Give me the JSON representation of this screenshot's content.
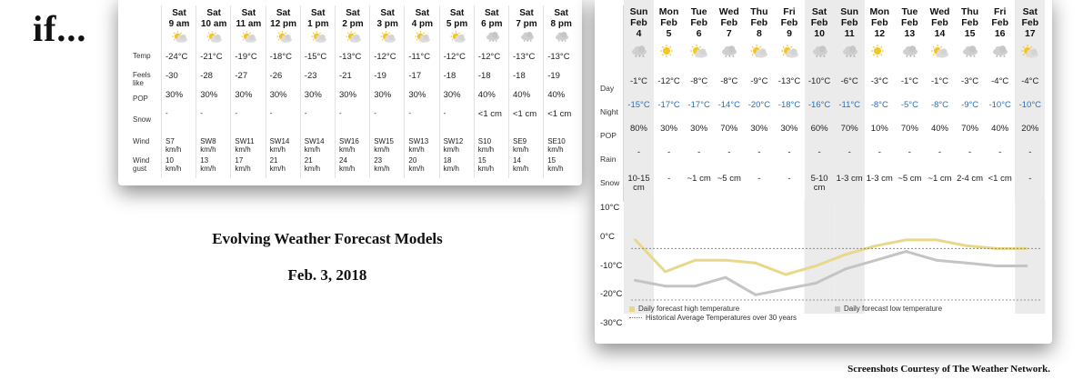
{
  "slide": {
    "if_text": "if...",
    "title": "Evolving Weather Forecast Models",
    "date": "Feb. 3, 2018",
    "credit": "Screenshots Courtesy of The Weather Network."
  },
  "hourly": {
    "row_labels": {
      "temp": "Temp",
      "feels": "Feels like",
      "pop": "POP",
      "snow": "Snow",
      "wind": "Wind",
      "gust": "Wind gust"
    },
    "columns": [
      {
        "day": "Sat",
        "time": "9 am",
        "icon": "sun-cloud-icon",
        "temp": "-24°C",
        "feels": "-30",
        "pop": "30%",
        "snow": "-",
        "wind": "S7",
        "wind_unit": "km/h",
        "gust": "10",
        "gust_unit": "km/h"
      },
      {
        "day": "Sat",
        "time": "10 am",
        "icon": "sun-cloud-icon",
        "temp": "-21°C",
        "feels": "-28",
        "pop": "30%",
        "snow": "-",
        "wind": "SW8",
        "wind_unit": "km/h",
        "gust": "13",
        "gust_unit": "km/h"
      },
      {
        "day": "Sat",
        "time": "11 am",
        "icon": "sun-cloud-icon",
        "temp": "-19°C",
        "feels": "-27",
        "pop": "30%",
        "snow": "-",
        "wind": "SW11",
        "wind_unit": "km/h",
        "gust": "17",
        "gust_unit": "km/h"
      },
      {
        "day": "Sat",
        "time": "12 pm",
        "icon": "sun-cloud-icon",
        "temp": "-18°C",
        "feels": "-26",
        "pop": "30%",
        "snow": "-",
        "wind": "SW14",
        "wind_unit": "km/h",
        "gust": "21",
        "gust_unit": "km/h"
      },
      {
        "day": "Sat",
        "time": "1 pm",
        "icon": "sun-cloud-icon",
        "temp": "-15°C",
        "feels": "-23",
        "pop": "30%",
        "snow": "-",
        "wind": "SW14",
        "wind_unit": "km/h",
        "gust": "21",
        "gust_unit": "km/h"
      },
      {
        "day": "Sat",
        "time": "2 pm",
        "icon": "sun-cloud-icon",
        "temp": "-13°C",
        "feels": "-21",
        "pop": "30%",
        "snow": "-",
        "wind": "SW16",
        "wind_unit": "km/h",
        "gust": "24",
        "gust_unit": "km/h"
      },
      {
        "day": "Sat",
        "time": "3 pm",
        "icon": "sun-cloud-icon",
        "temp": "-12°C",
        "feels": "-19",
        "pop": "30%",
        "snow": "-",
        "wind": "SW15",
        "wind_unit": "km/h",
        "gust": "23",
        "gust_unit": "km/h"
      },
      {
        "day": "Sat",
        "time": "4 pm",
        "icon": "sun-cloud-icon",
        "temp": "-11°C",
        "feels": "-17",
        "pop": "30%",
        "snow": "-",
        "wind": "SW13",
        "wind_unit": "km/h",
        "gust": "20",
        "gust_unit": "km/h"
      },
      {
        "day": "Sat",
        "time": "5 pm",
        "icon": "sun-cloud-icon",
        "temp": "-12°C",
        "feels": "-18",
        "pop": "30%",
        "snow": "-",
        "wind": "SW12",
        "wind_unit": "km/h",
        "gust": "18",
        "gust_unit": "km/h"
      },
      {
        "day": "Sat",
        "time": "6 pm",
        "icon": "snow-cloud-icon",
        "temp": "-12°C",
        "feels": "-18",
        "pop": "40%",
        "snow": "<1 cm",
        "wind": "S10",
        "wind_unit": "km/h",
        "gust": "15",
        "gust_unit": "km/h"
      },
      {
        "day": "Sat",
        "time": "7 pm",
        "icon": "snow-cloud-icon",
        "temp": "-13°C",
        "feels": "-18",
        "pop": "40%",
        "snow": "<1 cm",
        "wind": "SE9",
        "wind_unit": "km/h",
        "gust": "14",
        "gust_unit": "km/h"
      },
      {
        "day": "Sat",
        "time": "8 pm",
        "icon": "snow-cloud-icon",
        "temp": "-13°C",
        "feels": "-19",
        "pop": "40%",
        "snow": "<1 cm",
        "wind": "SE10",
        "wind_unit": "km/h",
        "gust": "15",
        "gust_unit": "km/h"
      }
    ]
  },
  "daily": {
    "row_labels": {
      "day": "Day",
      "night": "Night",
      "pop": "POP",
      "rain": "Rain",
      "snow": "Snow"
    },
    "columns": [
      {
        "dow": "Sun",
        "month": "Feb",
        "date": "4",
        "icon": "snow-cloud-icon",
        "day": "-1°C",
        "night": "-15°C",
        "pop": "80%",
        "rain": "-",
        "snow": "10-15 cm",
        "weekend": true
      },
      {
        "dow": "Mon",
        "month": "Feb",
        "date": "5",
        "icon": "sun-icon",
        "day": "-12°C",
        "night": "-17°C",
        "pop": "30%",
        "rain": "-",
        "snow": "-",
        "weekend": false
      },
      {
        "dow": "Tue",
        "month": "Feb",
        "date": "6",
        "icon": "sun-cloud-icon",
        "day": "-8°C",
        "night": "-17°C",
        "pop": "30%",
        "rain": "-",
        "snow": "~1 cm",
        "weekend": false
      },
      {
        "dow": "Wed",
        "month": "Feb",
        "date": "7",
        "icon": "snow-cloud-icon",
        "day": "-8°C",
        "night": "-14°C",
        "pop": "70%",
        "rain": "-",
        "snow": "~5 cm",
        "weekend": false
      },
      {
        "dow": "Thu",
        "month": "Feb",
        "date": "8",
        "icon": "sun-cloud-icon",
        "day": "-9°C",
        "night": "-20°C",
        "pop": "30%",
        "rain": "-",
        "snow": "-",
        "weekend": false
      },
      {
        "dow": "Fri",
        "month": "Feb",
        "date": "9",
        "icon": "sun-cloud-icon",
        "day": "-13°C",
        "night": "-18°C",
        "pop": "30%",
        "rain": "-",
        "snow": "-",
        "weekend": false
      },
      {
        "dow": "Sat",
        "month": "Feb",
        "date": "10",
        "icon": "snow-cloud-icon",
        "day": "-10°C",
        "night": "-16°C",
        "pop": "60%",
        "rain": "-",
        "snow": "5-10 cm",
        "weekend": true
      },
      {
        "dow": "Sun",
        "month": "Feb",
        "date": "11",
        "icon": "snow-cloud-icon",
        "day": "-6°C",
        "night": "-11°C",
        "pop": "70%",
        "rain": "-",
        "snow": "1-3 cm",
        "weekend": true
      },
      {
        "dow": "Mon",
        "month": "Feb",
        "date": "12",
        "icon": "sun-icon",
        "day": "-3°C",
        "night": "-8°C",
        "pop": "10%",
        "rain": "-",
        "snow": "1-3 cm",
        "weekend": false
      },
      {
        "dow": "Tue",
        "month": "Feb",
        "date": "13",
        "icon": "snow-cloud-icon",
        "day": "-1°C",
        "night": "-5°C",
        "pop": "70%",
        "rain": "-",
        "snow": "~5 cm",
        "weekend": false
      },
      {
        "dow": "Wed",
        "month": "Feb",
        "date": "14",
        "icon": "sun-cloud-icon",
        "day": "-1°C",
        "night": "-8°C",
        "pop": "40%",
        "rain": "-",
        "snow": "~1 cm",
        "weekend": false
      },
      {
        "dow": "Thu",
        "month": "Feb",
        "date": "15",
        "icon": "snow-cloud-icon",
        "day": "-3°C",
        "night": "-9°C",
        "pop": "70%",
        "rain": "-",
        "snow": "2-4 cm",
        "weekend": false
      },
      {
        "dow": "Fri",
        "month": "Feb",
        "date": "16",
        "icon": "snow-cloud-icon",
        "day": "-4°C",
        "night": "-10°C",
        "pop": "40%",
        "rain": "-",
        "snow": "<1 cm",
        "weekend": false
      },
      {
        "dow": "Sat",
        "month": "Feb",
        "date": "17",
        "icon": "sun-cloud-icon",
        "day": "-4°C",
        "night": "-10°C",
        "pop": "20%",
        "rain": "-",
        "snow": "-",
        "weekend": true
      }
    ],
    "y_ticks": [
      "10°C",
      "0°C",
      "-10°C",
      "-20°C",
      "-30°C"
    ],
    "legend": {
      "high": "Daily forecast high temperature",
      "low": "Daily forecast low temperature",
      "hist": "Historical Average Temperatures over 30 years"
    },
    "colors": {
      "high": "#e8d88a",
      "low": "#c4c4c4",
      "hist": "#888888",
      "night_text": "#2a6fb5",
      "weekend_shade": "#ebebeb"
    }
  },
  "chart_data": {
    "type": "line",
    "x": [
      "Sun Feb 4",
      "Mon Feb 5",
      "Tue Feb 6",
      "Wed Feb 7",
      "Thu Feb 8",
      "Fri Feb 9",
      "Sat Feb 10",
      "Sun Feb 11",
      "Mon Feb 12",
      "Tue Feb 13",
      "Wed Feb 14",
      "Thu Feb 15",
      "Fri Feb 16",
      "Sat Feb 17"
    ],
    "series": [
      {
        "name": "Daily forecast high temperature",
        "values": [
          -1,
          -12,
          -8,
          -8,
          -9,
          -13,
          -10,
          -6,
          -3,
          -1,
          -1,
          -3,
          -4,
          -4
        ]
      },
      {
        "name": "Daily forecast low temperature",
        "values": [
          -15,
          -17,
          -17,
          -14,
          -20,
          -18,
          -16,
          -11,
          -8,
          -5,
          -8,
          -9,
          -10,
          -10
        ]
      },
      {
        "name": "Historical Average Temperatures over 30 years",
        "values": [
          -4,
          -4,
          -4,
          -4,
          -4,
          -4,
          -4,
          -4,
          -4,
          -4,
          -4,
          -4,
          -4,
          -4
        ]
      }
    ],
    "ylim": [
      -30,
      10
    ],
    "yticks": [
      "10°C",
      "0°C",
      "-10°C",
      "-20°C",
      "-30°C"
    ],
    "grid": false,
    "legend": "bottom"
  }
}
